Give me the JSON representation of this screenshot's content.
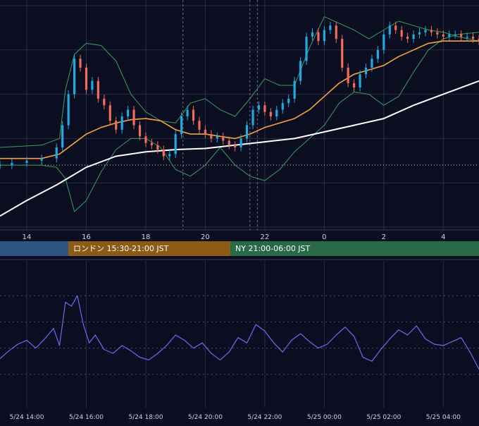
{
  "colors": {
    "background": "#0b0d21",
    "grid": "#2a2d46",
    "candle_up": "#21a9e1",
    "candle_down": "#f26b5b",
    "ma_short": "#f7a33b",
    "ma_long": "#ffffff",
    "bollinger": "#3a9f5e",
    "oscillator": "#6b6cf0",
    "tokyo_session": "#2e5482",
    "london_session": "#8a5a16",
    "ny_session": "#286a45"
  },
  "sessions": {
    "tokyo": "",
    "london": "ロンドン 15:30-21:00 JST",
    "ny": "NY 21:00-06:00 JST"
  },
  "chart_data": [
    {
      "type": "line",
      "subtype": "candlestick",
      "x_ticks": [
        "14",
        "16",
        "18",
        "20",
        "22",
        "0",
        "2",
        "4"
      ],
      "x_range_hours": [
        13.1,
        29.2
      ],
      "grid": true,
      "scale_units": "hours since 5/24 00:00, relative price (0-100)",
      "y_range": [
        0,
        100
      ],
      "series": [
        {
          "kind": "bollinger_upper",
          "x": [
            13.1,
            14.5,
            15.1,
            15.3,
            15.6,
            16.0,
            16.5,
            17.0,
            17.5,
            18.0,
            18.5,
            19.0,
            19.5,
            20.0,
            20.5,
            21.0,
            21.5,
            22.0,
            22.5,
            23.0,
            23.5,
            24.0,
            24.5,
            25.0,
            25.5,
            26.0,
            26.5,
            27.0,
            27.5,
            28.0,
            28.5,
            29.2
          ],
          "values": [
            36,
            37,
            40,
            62,
            78,
            83,
            82,
            75,
            60,
            52,
            48,
            47,
            56,
            58,
            53,
            50,
            58,
            67,
            64,
            64,
            81,
            95,
            92,
            89,
            85,
            89,
            93,
            91,
            89,
            88,
            86,
            84
          ]
        },
        {
          "kind": "bollinger_lower",
          "x": [
            13.1,
            14.5,
            15.0,
            15.3,
            15.6,
            16.0,
            16.5,
            17.0,
            17.5,
            18.0,
            18.5,
            19.0,
            19.5,
            20.0,
            20.5,
            21.0,
            21.5,
            22.0,
            22.5,
            23.0,
            23.5,
            24.0,
            24.5,
            25.0,
            25.5,
            26.0,
            26.5,
            27.0,
            27.5,
            28.0,
            28.5,
            29.2
          ],
          "values": [
            28,
            28,
            27,
            22,
            7,
            12,
            25,
            35,
            40,
            40,
            36,
            26,
            23,
            28,
            36,
            28,
            23,
            21,
            26,
            34,
            40,
            46,
            56,
            61,
            60,
            55,
            59,
            70,
            80,
            85,
            87,
            88
          ]
        },
        {
          "kind": "ma_short",
          "x": [
            13.1,
            14.5,
            15.1,
            15.5,
            16.0,
            16.5,
            17.0,
            17.5,
            18.0,
            18.5,
            19.0,
            19.5,
            20.0,
            20.5,
            21.0,
            21.5,
            22.0,
            22.5,
            23.0,
            23.5,
            24.0,
            24.5,
            25.0,
            25.5,
            26.0,
            26.5,
            27.0,
            27.5,
            28.0,
            28.5,
            29.2
          ],
          "values": [
            31,
            31,
            33,
            37,
            42,
            45,
            47,
            48.5,
            49,
            48,
            44,
            42,
            42,
            41,
            40,
            42,
            45,
            47,
            49,
            53,
            59,
            65,
            69,
            71,
            73,
            77,
            80,
            83,
            84,
            84,
            84
          ]
        },
        {
          "kind": "ma_long",
          "x": [
            13.1,
            14.0,
            15.0,
            16.0,
            17.0,
            18.0,
            19.0,
            20.0,
            21.0,
            22.0,
            23.0,
            24.0,
            25.0,
            26.0,
            27.0,
            28.0,
            29.2
          ],
          "values": [
            5,
            12,
            19,
            27,
            32,
            34,
            35,
            35.5,
            37,
            38.5,
            40,
            43,
            46,
            49,
            55,
            60,
            66
          ]
        },
        {
          "kind": "candlestick_close",
          "x": [
            13.1,
            13.5,
            14.0,
            14.5,
            15.0,
            15.2,
            15.4,
            15.6,
            15.8,
            16.0,
            16.2,
            16.4,
            16.6,
            16.8,
            17.0,
            17.2,
            17.4,
            17.6,
            17.8,
            18.0,
            18.2,
            18.4,
            18.6,
            18.8,
            19.0,
            19.2,
            19.4,
            19.6,
            19.8,
            20.0,
            20.2,
            20.4,
            20.6,
            20.8,
            21.0,
            21.2,
            21.4,
            21.6,
            21.8,
            22.0,
            22.2,
            22.4,
            22.6,
            22.8,
            23.0,
            23.2,
            23.4,
            23.6,
            23.8,
            24.0,
            24.2,
            24.4,
            24.6,
            24.8,
            25.0,
            25.2,
            25.4,
            25.6,
            25.8,
            26.0,
            26.2,
            26.4,
            26.6,
            26.8,
            27.0,
            27.2,
            27.4,
            27.6,
            27.8,
            28.0,
            28.2,
            28.4,
            28.6,
            28.8,
            29.0,
            29.2
          ],
          "values": [
            28,
            29,
            30,
            31,
            36,
            46,
            60,
            76,
            72,
            62,
            66,
            58,
            55,
            48,
            44,
            50,
            53,
            46,
            41,
            38,
            37,
            35,
            32,
            33,
            42,
            50,
            53,
            48,
            44,
            42,
            40,
            41,
            39,
            37,
            36,
            40,
            46,
            53,
            55,
            52,
            50,
            53,
            56,
            58,
            66,
            75,
            86,
            88,
            84,
            89,
            91,
            85,
            72,
            65,
            63,
            69,
            72,
            76,
            80,
            87,
            91,
            89,
            86,
            85,
            87,
            88,
            89,
            88,
            87,
            86,
            87,
            87,
            86,
            86,
            85,
            84
          ]
        }
      ]
    },
    {
      "type": "line",
      "x_ticks": [
        "5/24 14:00",
        "5/24 16:00",
        "5/24 18:00",
        "5/24 20:00",
        "5/24 22:00",
        "5/25 00:00",
        "5/25 02:00",
        "5/25 04:00"
      ],
      "x_range_hours": [
        13.1,
        29.2
      ],
      "grid": true,
      "y_range": [
        0,
        100
      ],
      "series": [
        {
          "kind": "oscillator",
          "x": [
            13.1,
            13.4,
            13.7,
            14.0,
            14.3,
            14.6,
            14.9,
            15.1,
            15.3,
            15.5,
            15.7,
            15.9,
            16.1,
            16.3,
            16.6,
            16.9,
            17.2,
            17.5,
            17.8,
            18.1,
            18.4,
            18.7,
            19.0,
            19.3,
            19.6,
            19.9,
            20.2,
            20.5,
            20.8,
            21.1,
            21.4,
            21.7,
            22.0,
            22.3,
            22.6,
            22.9,
            23.2,
            23.5,
            23.8,
            24.1,
            24.4,
            24.7,
            25.0,
            25.3,
            25.6,
            25.9,
            26.2,
            26.5,
            26.8,
            27.1,
            27.4,
            27.7,
            28.0,
            28.3,
            28.6,
            28.9,
            29.2
          ],
          "values": [
            32,
            38,
            43,
            46,
            40,
            47,
            55,
            42,
            75,
            72,
            80,
            58,
            44,
            50,
            39,
            36,
            42,
            38,
            33,
            31,
            36,
            42,
            50,
            46,
            40,
            44,
            36,
            31,
            37,
            48,
            44,
            58,
            53,
            44,
            37,
            46,
            51,
            45,
            40,
            43,
            50,
            56,
            49,
            33,
            30,
            39,
            47,
            54,
            50,
            57,
            47,
            43,
            42,
            45,
            48,
            37,
            24
          ]
        }
      ]
    }
  ]
}
